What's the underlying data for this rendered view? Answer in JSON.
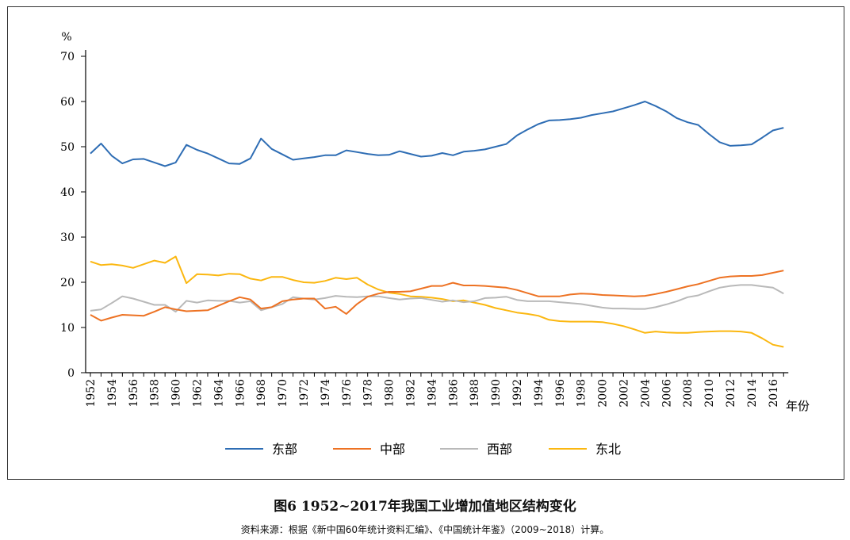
{
  "chart_data": {
    "type": "line",
    "title": "图6  1952~2017年我国工业增加值地区结构变化",
    "source": "资料来源：根据《新中国60年统计资料汇编》、《中国统计年鉴》（2009~2018）计算。",
    "ylabel": "%",
    "xlabel": "年份",
    "ylim": [
      0,
      70
    ],
    "yticks": [
      "0",
      "10",
      "20",
      "30",
      "40",
      "50",
      "60",
      "70"
    ],
    "x_start": 1952,
    "x_end": 2017,
    "xticks": [
      "1952",
      "1954",
      "1956",
      "1958",
      "1960",
      "1962",
      "1964",
      "1966",
      "1968",
      "1970",
      "1972",
      "1974",
      "1976",
      "1978",
      "1980",
      "1982",
      "1984",
      "1986",
      "1988",
      "1990",
      "1992",
      "1994",
      "1996",
      "1998",
      "2000",
      "2002",
      "2004",
      "2006",
      "2008",
      "2010",
      "2012",
      "2014",
      "2016"
    ],
    "legend_position": "bottom",
    "series": [
      {
        "name": "东部",
        "color": "#2e6db4",
        "values": [
          48.5,
          50.7,
          48,
          46.3,
          47.2,
          47.3,
          46.5,
          45.7,
          46.5,
          50.4,
          49.3,
          48.5,
          47.4,
          46.3,
          46.2,
          47.4,
          51.8,
          49.5,
          48.3,
          47.1,
          47.4,
          47.7,
          48.1,
          48.1,
          49.2,
          48.8,
          48.4,
          48.1,
          48.2,
          49,
          48.4,
          47.8,
          48,
          48.6,
          48.1,
          48.9,
          49.1,
          49.4,
          50,
          50.6,
          52.5,
          53.8,
          55,
          55.8,
          55.9,
          56.1,
          56.4,
          57,
          57.4,
          57.8,
          58.5,
          59.2,
          60,
          59,
          57.8,
          56.3,
          55.4,
          54.8,
          52.8,
          51,
          50.2,
          50.3,
          50.5,
          52,
          53.6,
          54.2
        ]
      },
      {
        "name": "中部",
        "color": "#ed7223",
        "values": [
          12.8,
          11.5,
          12.2,
          12.8,
          12.7,
          12.6,
          13.5,
          14.5,
          14,
          13.6,
          13.7,
          13.8,
          14.8,
          15.8,
          16.7,
          16.2,
          14.2,
          14.5,
          15.8,
          16.2,
          16.4,
          16.4,
          14.2,
          14.6,
          13,
          15.2,
          16.8,
          17.5,
          17.9,
          17.9,
          18,
          18.6,
          19.2,
          19.2,
          19.9,
          19.3,
          19.3,
          19.2,
          19,
          18.8,
          18.3,
          17.6,
          16.9,
          16.9,
          16.9,
          17.3,
          17.5,
          17.4,
          17.2,
          17.1,
          17,
          16.9,
          17,
          17.4,
          17.9,
          18.5,
          19.1,
          19.6,
          20.3,
          21,
          21.3,
          21.4,
          21.4,
          21.6,
          22.1,
          22.6
        ]
      },
      {
        "name": "西部",
        "color": "#b9b9b9",
        "values": [
          13.7,
          14,
          15.4,
          16.9,
          16.4,
          15.7,
          15,
          15,
          13.5,
          15.9,
          15.5,
          16,
          15.9,
          15.9,
          15.5,
          15.8,
          13.8,
          14.5,
          15.2,
          16.7,
          16.4,
          16.2,
          16.5,
          17,
          16.8,
          16.7,
          16.9,
          16.9,
          16.5,
          16.2,
          16.4,
          16.5,
          16.1,
          15.7,
          16,
          15.6,
          15.8,
          16.5,
          16.6,
          16.8,
          16.1,
          15.8,
          15.8,
          15.8,
          15.6,
          15.4,
          15.2,
          14.8,
          14.4,
          14.2,
          14.2,
          14.1,
          14.1,
          14.5,
          15.1,
          15.8,
          16.7,
          17.1,
          18,
          18.8,
          19.2,
          19.4,
          19.4,
          19.1,
          18.8,
          17.5
        ]
      },
      {
        "name": "东北",
        "color": "#fbb710",
        "values": [
          24.6,
          23.8,
          24,
          23.7,
          23.2,
          24,
          24.8,
          24.3,
          25.7,
          19.8,
          21.8,
          21.7,
          21.5,
          21.9,
          21.8,
          20.8,
          20.4,
          21.2,
          21.2,
          20.5,
          20,
          19.9,
          20.3,
          21,
          20.7,
          21,
          19.5,
          18.4,
          17.7,
          17.4,
          16.9,
          16.8,
          16.6,
          16.3,
          15.8,
          16,
          15.5,
          15,
          14.3,
          13.8,
          13.3,
          13,
          12.6,
          11.7,
          11.4,
          11.3,
          11.3,
          11.3,
          11.2,
          10.8,
          10.3,
          9.6,
          8.8,
          9.1,
          8.9,
          8.8,
          8.8,
          9,
          9.1,
          9.2,
          9.2,
          9.1,
          8.8,
          7.6,
          6.2,
          5.7
        ]
      }
    ]
  }
}
